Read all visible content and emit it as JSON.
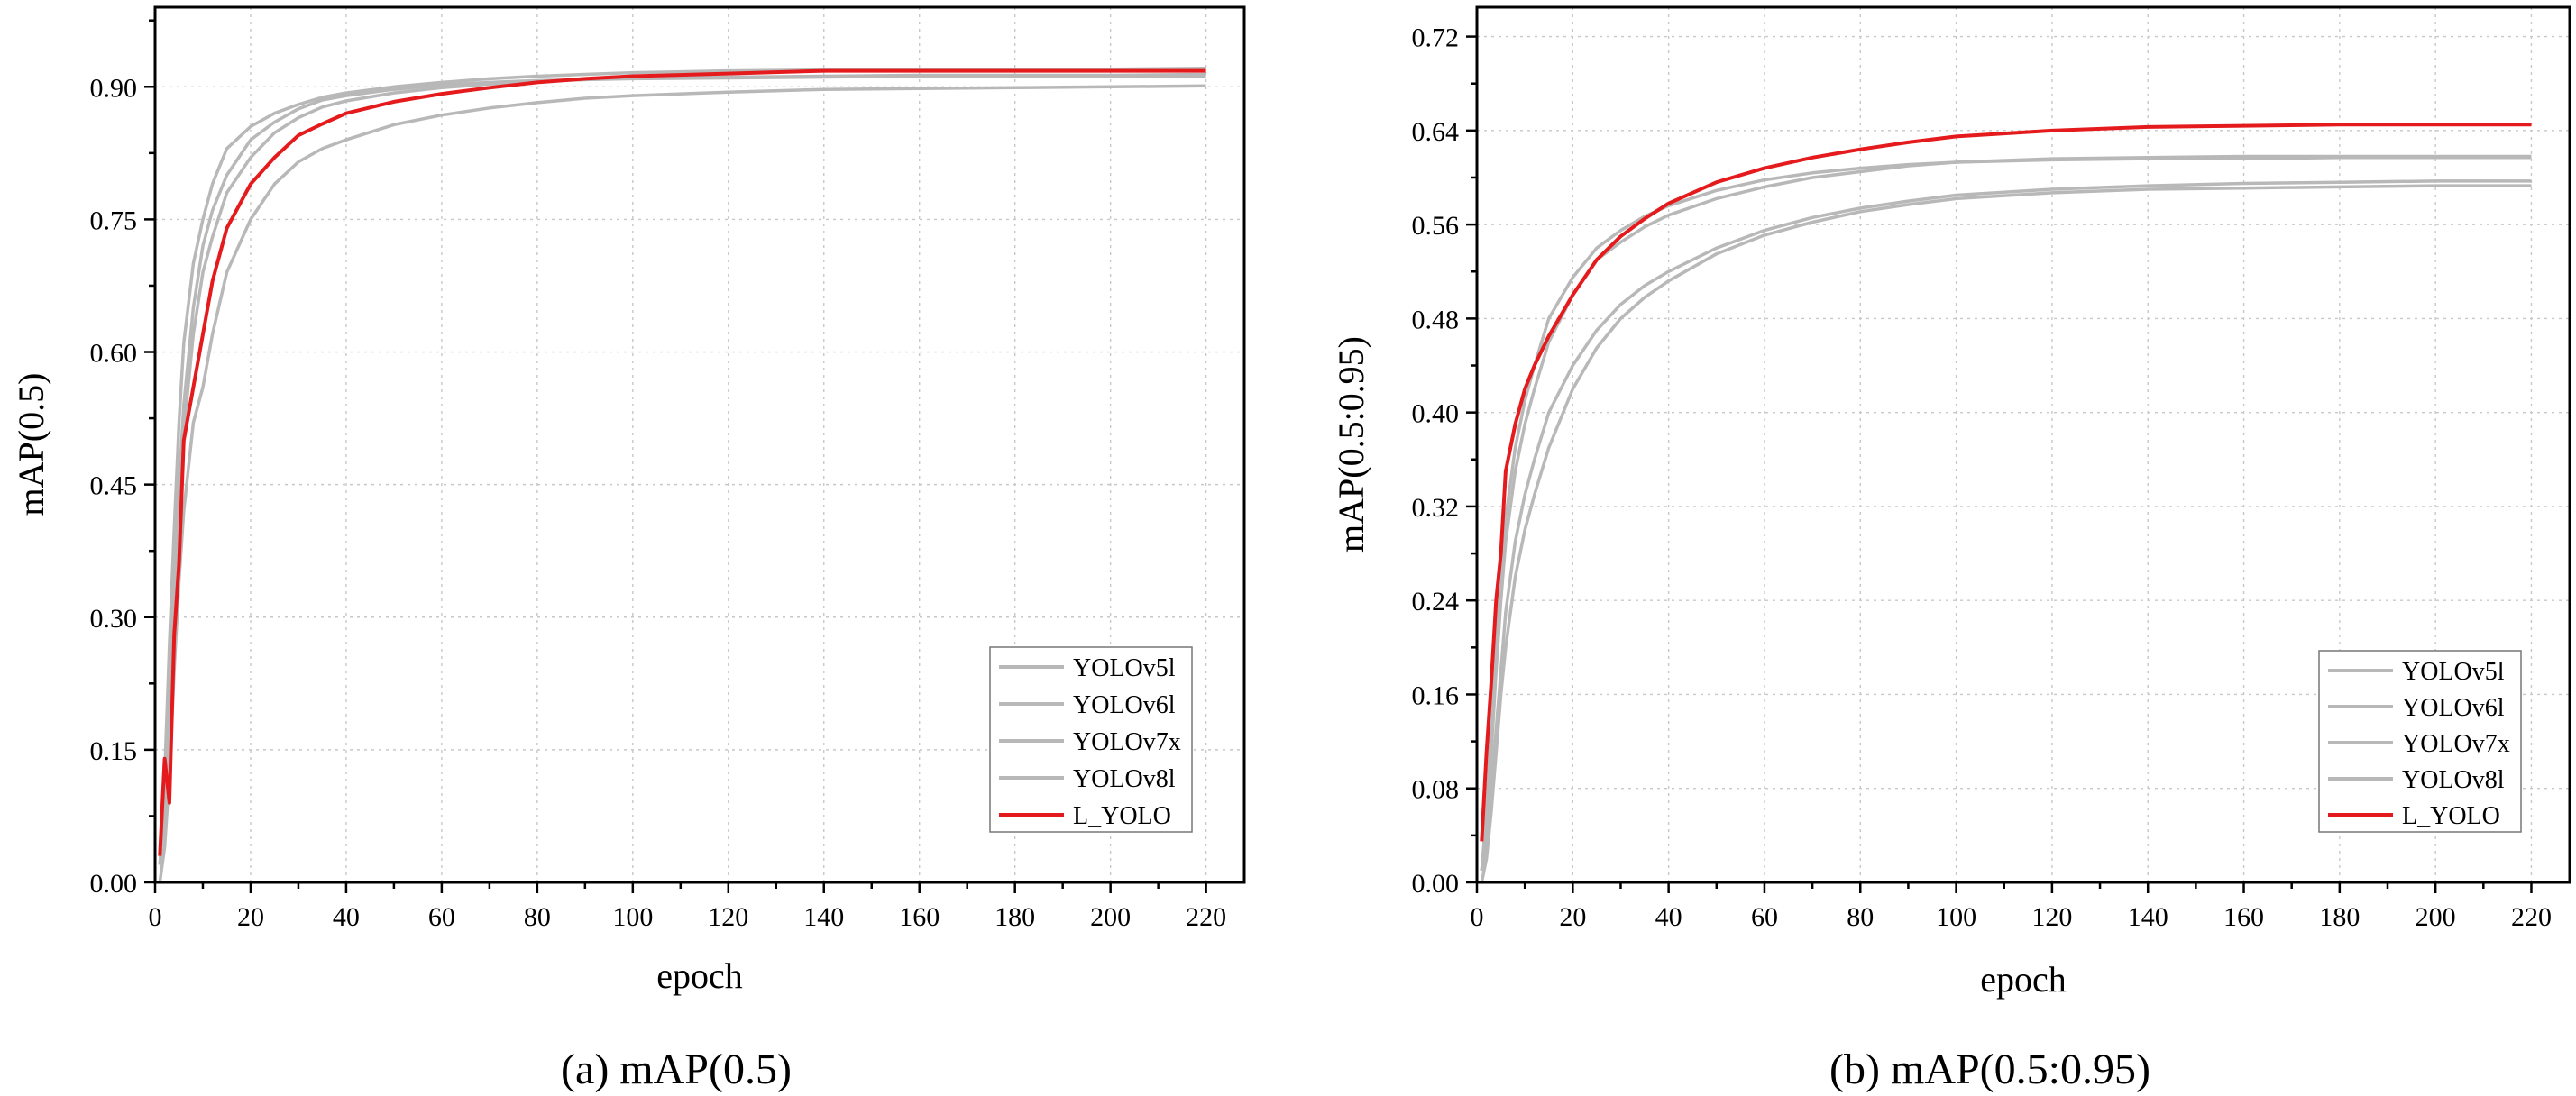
{
  "colors": {
    "baseline": "#b8b8b8",
    "proposed": "#e41a1c"
  },
  "chart_data": [
    {
      "type": "line",
      "caption": "(a) mAP(0.5)",
      "title": "",
      "xlabel": "epoch",
      "ylabel": "mAP(0.5)",
      "xlim": [
        0,
        228
      ],
      "ylim": [
        0,
        0.99
      ],
      "xticks": [
        0,
        20,
        40,
        60,
        80,
        100,
        120,
        140,
        160,
        180,
        200,
        220
      ],
      "xtick_labels": [
        "0",
        "20",
        "40",
        "60",
        "80",
        "100",
        "120",
        "140",
        "160",
        "180",
        "200",
        "220"
      ],
      "yticks": [
        0,
        0.15,
        0.3,
        0.45,
        0.6,
        0.75,
        0.9
      ],
      "ytick_labels": [
        "0.00",
        "0.15",
        "0.30",
        "0.45",
        "0.60",
        "0.75",
        "0.90"
      ],
      "grid": true,
      "legend_position": "bottom-right",
      "x": [
        1,
        2,
        3,
        4,
        5,
        6,
        8,
        10,
        12,
        15,
        20,
        25,
        30,
        35,
        40,
        50,
        60,
        70,
        80,
        90,
        100,
        120,
        140,
        160,
        180,
        200,
        220
      ],
      "series": [
        {
          "name": "YOLOv5l",
          "role": "baseline",
          "values": [
            0.02,
            0.09,
            0.2,
            0.34,
            0.45,
            0.54,
            0.65,
            0.72,
            0.76,
            0.8,
            0.84,
            0.86,
            0.875,
            0.885,
            0.89,
            0.897,
            0.902,
            0.905,
            0.907,
            0.908,
            0.909,
            0.91,
            0.911,
            0.912,
            0.912,
            0.912,
            0.912
          ]
        },
        {
          "name": "YOLOv6l",
          "role": "baseline",
          "values": [
            0.0,
            0.04,
            0.12,
            0.24,
            0.34,
            0.42,
            0.52,
            0.56,
            0.62,
            0.69,
            0.75,
            0.79,
            0.815,
            0.83,
            0.84,
            0.857,
            0.868,
            0.876,
            0.882,
            0.887,
            0.89,
            0.894,
            0.897,
            0.898,
            0.899,
            0.9,
            0.901
          ]
        },
        {
          "name": "YOLOv7x",
          "role": "baseline",
          "values": [
            0.03,
            0.12,
            0.27,
            0.4,
            0.52,
            0.61,
            0.7,
            0.75,
            0.79,
            0.83,
            0.855,
            0.87,
            0.88,
            0.888,
            0.893,
            0.9,
            0.905,
            0.909,
            0.912,
            0.914,
            0.916,
            0.918,
            0.919,
            0.92,
            0.92,
            0.92,
            0.921
          ]
        },
        {
          "name": "YOLOv8l",
          "role": "baseline",
          "values": [
            0.02,
            0.08,
            0.18,
            0.3,
            0.42,
            0.51,
            0.62,
            0.69,
            0.73,
            0.78,
            0.82,
            0.848,
            0.865,
            0.877,
            0.884,
            0.893,
            0.899,
            0.903,
            0.906,
            0.908,
            0.91,
            0.911,
            0.912,
            0.913,
            0.913,
            0.913,
            0.914
          ]
        },
        {
          "name": "L_YOLO",
          "role": "proposed",
          "values": [
            0.03,
            0.14,
            0.09,
            0.28,
            0.36,
            0.5,
            0.56,
            0.62,
            0.68,
            0.74,
            0.79,
            0.82,
            0.845,
            0.858,
            0.87,
            0.883,
            0.892,
            0.899,
            0.905,
            0.909,
            0.912,
            0.915,
            0.918,
            0.918,
            0.918,
            0.918,
            0.918
          ]
        }
      ]
    },
    {
      "type": "line",
      "caption": "(b) mAP(0.5:0.95)",
      "title": "",
      "xlabel": "epoch",
      "ylabel": "mAP(0.5:0.95)",
      "xlim": [
        0,
        228
      ],
      "ylim": [
        0,
        0.745
      ],
      "xticks": [
        0,
        20,
        40,
        60,
        80,
        100,
        120,
        140,
        160,
        180,
        200,
        220
      ],
      "xtick_labels": [
        "0",
        "20",
        "40",
        "60",
        "80",
        "100",
        "120",
        "140",
        "160",
        "180",
        "200",
        "220"
      ],
      "yticks": [
        0,
        0.08,
        0.16,
        0.24,
        0.32,
        0.4,
        0.48,
        0.56,
        0.64,
        0.72
      ],
      "ytick_labels": [
        "0.00",
        "0.08",
        "0.16",
        "0.24",
        "0.32",
        "0.40",
        "0.48",
        "0.56",
        "0.64",
        "0.72"
      ],
      "grid": true,
      "legend_position": "bottom-right",
      "x": [
        1,
        2,
        3,
        4,
        5,
        6,
        8,
        10,
        12,
        15,
        20,
        25,
        30,
        35,
        40,
        50,
        60,
        70,
        80,
        90,
        100,
        120,
        140,
        160,
        180,
        200,
        220
      ],
      "series": [
        {
          "name": "YOLOv5l",
          "role": "baseline",
          "values": [
            0.01,
            0.05,
            0.11,
            0.18,
            0.24,
            0.29,
            0.35,
            0.39,
            0.42,
            0.46,
            0.5,
            0.53,
            0.545,
            0.558,
            0.568,
            0.582,
            0.592,
            0.6,
            0.605,
            0.61,
            0.613,
            0.616,
            0.617,
            0.618,
            0.618,
            0.618,
            0.618
          ]
        },
        {
          "name": "YOLOv6l",
          "role": "baseline",
          "values": [
            0.0,
            0.02,
            0.06,
            0.11,
            0.16,
            0.2,
            0.26,
            0.3,
            0.33,
            0.37,
            0.42,
            0.455,
            0.48,
            0.498,
            0.512,
            0.535,
            0.551,
            0.562,
            0.571,
            0.577,
            0.582,
            0.587,
            0.59,
            0.591,
            0.592,
            0.593,
            0.593
          ]
        },
        {
          "name": "YOLOv7x",
          "role": "baseline",
          "values": [
            0.01,
            0.06,
            0.13,
            0.2,
            0.26,
            0.31,
            0.37,
            0.41,
            0.44,
            0.48,
            0.515,
            0.54,
            0.555,
            0.567,
            0.576,
            0.589,
            0.598,
            0.604,
            0.608,
            0.611,
            0.613,
            0.615,
            0.616,
            0.616,
            0.617,
            0.617,
            0.617
          ]
        },
        {
          "name": "YOLOv8l",
          "role": "baseline",
          "values": [
            0.01,
            0.03,
            0.08,
            0.13,
            0.18,
            0.23,
            0.29,
            0.33,
            0.36,
            0.4,
            0.44,
            0.47,
            0.492,
            0.508,
            0.52,
            0.54,
            0.555,
            0.566,
            0.574,
            0.58,
            0.585,
            0.59,
            0.593,
            0.595,
            0.596,
            0.597,
            0.597
          ]
        },
        {
          "name": "L_YOLO",
          "role": "proposed",
          "values": [
            0.035,
            0.11,
            0.17,
            0.24,
            0.28,
            0.35,
            0.39,
            0.42,
            0.44,
            0.465,
            0.5,
            0.53,
            0.55,
            0.565,
            0.578,
            0.596,
            0.608,
            0.617,
            0.624,
            0.63,
            0.635,
            0.64,
            0.643,
            0.644,
            0.645,
            0.645,
            0.645
          ]
        }
      ]
    }
  ]
}
